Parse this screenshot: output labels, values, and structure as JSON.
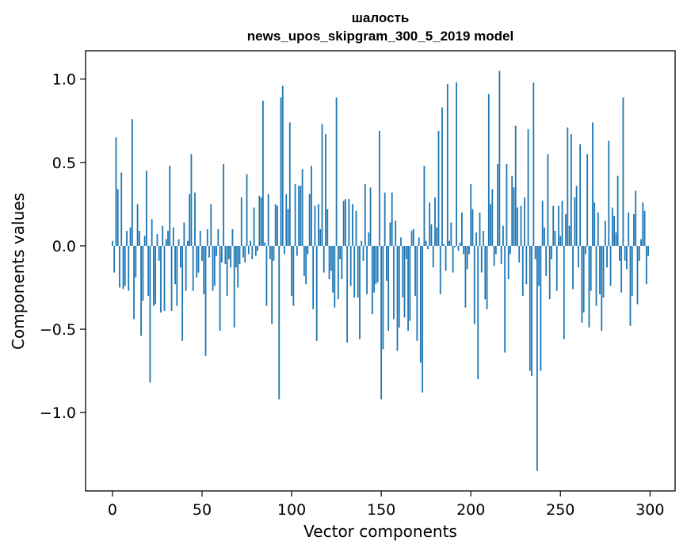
{
  "chart_data": {
    "type": "bar",
    "title_line1": "шалость",
    "title_line2": "news_upos_skipgram_300_5_2019 model",
    "xlabel": "Vector components",
    "ylabel": "Components values",
    "xlim": [
      -15,
      314
    ],
    "ylim": [
      -1.47,
      1.17
    ],
    "x_ticks": [
      0,
      50,
      100,
      150,
      200,
      250,
      300
    ],
    "x_tick_labels": [
      "0",
      "50",
      "100",
      "150",
      "200",
      "250",
      "300"
    ],
    "y_ticks": [
      1.0,
      0.5,
      0.0,
      -0.5,
      -1.0
    ],
    "y_tick_labels": [
      "1.0",
      "0.5",
      "0.0",
      "−0.5",
      "−1.0"
    ],
    "bar_color": "#1f77b4",
    "grid": false,
    "values": [
      0.03,
      -0.16,
      0.65,
      0.34,
      -0.25,
      0.44,
      -0.26,
      -0.24,
      0.09,
      -0.27,
      0.11,
      0.76,
      -0.44,
      -0.19,
      0.25,
      0.09,
      -0.54,
      -0.33,
      0.06,
      0.45,
      -0.3,
      -0.82,
      0.16,
      -0.36,
      -0.35,
      0.07,
      -0.09,
      -0.4,
      0.12,
      -0.39,
      0.04,
      0.09,
      0.48,
      -0.39,
      0.11,
      -0.23,
      -0.36,
      0.04,
      -0.13,
      -0.57,
      0.14,
      -0.27,
      0.03,
      0.31,
      0.55,
      -0.27,
      0.32,
      -0.19,
      -0.16,
      0.09,
      -0.09,
      -0.29,
      -0.66,
      0.1,
      -0.07,
      0.25,
      -0.27,
      -0.24,
      -0.06,
      0.1,
      -0.51,
      -0.1,
      0.49,
      -0.11,
      -0.3,
      -0.08,
      -0.13,
      0.1,
      -0.49,
      -0.13,
      -0.25,
      -0.11,
      0.29,
      -0.07,
      -0.1,
      0.43,
      -0.05,
      0.03,
      -0.08,
      0.23,
      -0.06,
      -0.03,
      0.3,
      0.29,
      0.87,
      0.02,
      -0.36,
      0.31,
      -0.08,
      -0.47,
      -0.09,
      0.25,
      0.24,
      -0.92,
      0.89,
      0.96,
      -0.05,
      0.31,
      0.22,
      0.74,
      -0.3,
      -0.36,
      0.37,
      -0.06,
      0.36,
      0.36,
      0.46,
      -0.18,
      -0.23,
      -0.05,
      0.31,
      0.48,
      -0.38,
      0.24,
      -0.57,
      0.25,
      0.1,
      0.73,
      -0.16,
      0.67,
      0.22,
      -0.2,
      -0.15,
      -0.28,
      -0.37,
      0.89,
      -0.32,
      -0.08,
      -0.2,
      0.27,
      0.28,
      -0.58,
      0.28,
      -0.24,
      0.25,
      -0.31,
      0.21,
      -0.31,
      -0.56,
      0.03,
      -0.09,
      0.37,
      -0.29,
      0.08,
      0.35,
      -0.41,
      -0.28,
      -0.23,
      -0.22,
      0.69,
      -0.92,
      -0.62,
      0.32,
      -0.21,
      -0.51,
      0.14,
      0.32,
      -0.44,
      0.15,
      -0.63,
      -0.49,
      0.05,
      -0.31,
      -0.43,
      -0.08,
      -0.51,
      -0.45,
      0.09,
      0.1,
      -0.3,
      -0.57,
      0.05,
      -0.7,
      -0.88,
      0.48,
      0.03,
      -0.02,
      0.26,
      0.13,
      -0.13,
      0.29,
      0.11,
      0.69,
      -0.29,
      0.83,
      0.01,
      -0.15,
      0.97,
      0.03,
      0.14,
      -0.16,
      -0.01,
      0.98,
      -0.03,
      0.02,
      0.2,
      -0.05,
      -0.37,
      -0.14,
      -0.05,
      0.37,
      0.22,
      -0.47,
      0.08,
      -0.8,
      0.2,
      -0.16,
      0.09,
      -0.32,
      -0.38,
      0.91,
      0.25,
      0.34,
      -0.12,
      -0.05,
      0.49,
      1.05,
      -0.11,
      0.12,
      -0.64,
      0.49,
      -0.2,
      -0.05,
      0.42,
      0.35,
      0.72,
      0.23,
      -0.1,
      0.24,
      -0.3,
      0.29,
      -0.23,
      0.7,
      -0.75,
      -0.78,
      0.98,
      -0.08,
      -1.35,
      -0.24,
      -0.75,
      0.27,
      0.11,
      -0.18,
      0.55,
      -0.32,
      -0.08,
      0.24,
      0.09,
      -0.27,
      0.24,
      0.06,
      0.27,
      -0.56,
      0.19,
      0.71,
      0.12,
      0.67,
      -0.26,
      0.29,
      0.36,
      -0.13,
      0.61,
      -0.46,
      -0.4,
      -0.05,
      0.55,
      -0.49,
      -0.27,
      0.74,
      0.26,
      -0.36,
      0.2,
      -0.29,
      -0.51,
      -0.31,
      0.15,
      -0.13,
      0.63,
      -0.24,
      0.23,
      0.18,
      0.08,
      0.42,
      -0.09,
      -0.28,
      0.89,
      -0.09,
      -0.14,
      0.2,
      -0.48,
      -0.3,
      0.19,
      0.33,
      -0.35,
      -0.09,
      0.04,
      0.26,
      0.21,
      -0.23,
      -0.06
    ]
  }
}
